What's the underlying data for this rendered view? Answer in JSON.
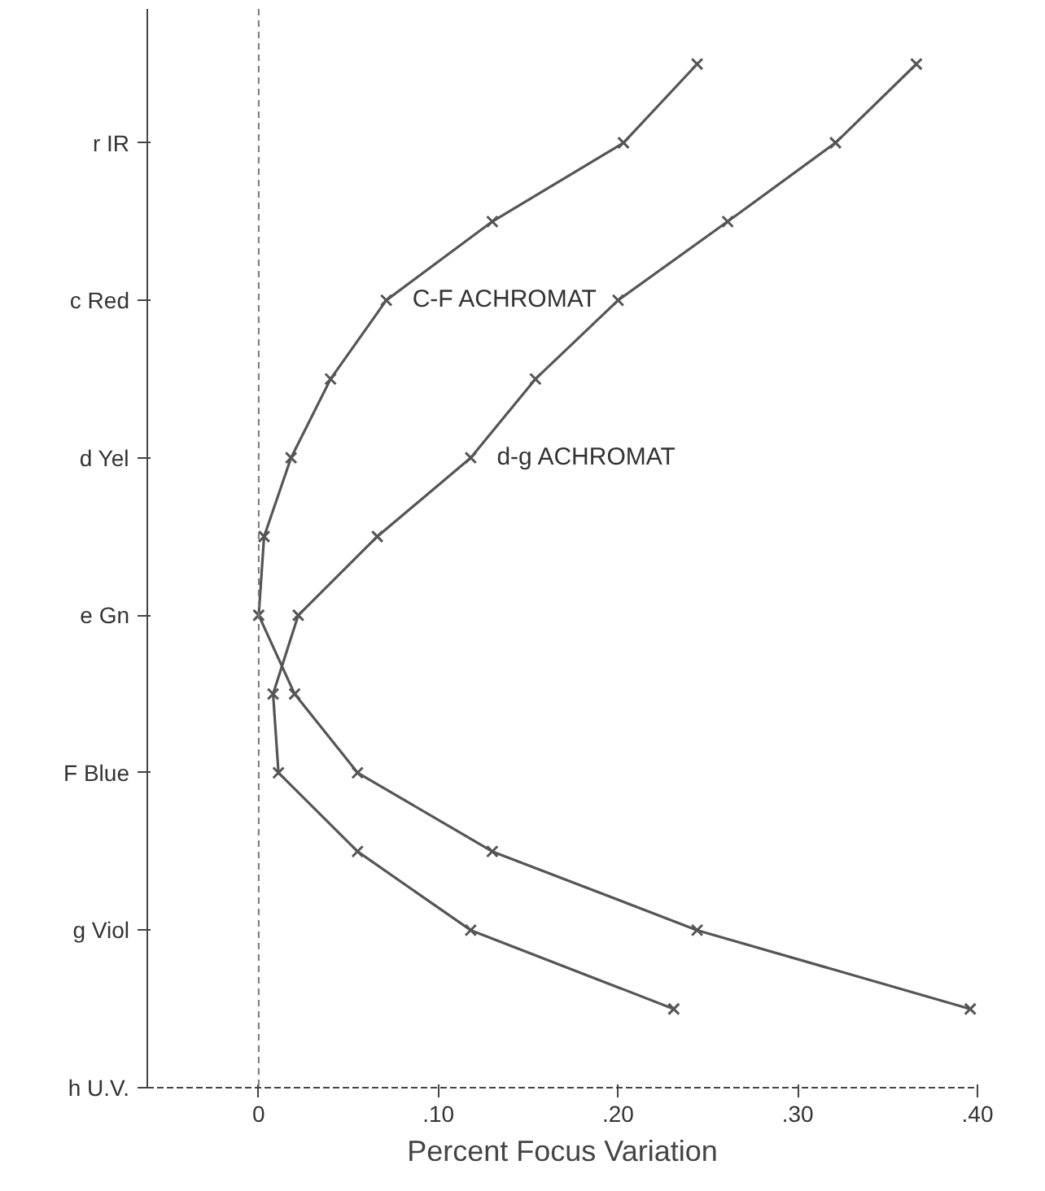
{
  "chart_data": {
    "type": "line",
    "orientation": "horizontal",
    "xlabel": "Percent Focus Variation",
    "xlim": [
      -0.062,
      0.4
    ],
    "xticks": [
      {
        "value": 0,
        "label": "0"
      },
      {
        "value": 0.1,
        "label": ".10"
      },
      {
        "value": 0.2,
        "label": ".20"
      },
      {
        "value": 0.3,
        "label": ".30"
      },
      {
        "value": 0.4,
        "label": ".40"
      }
    ],
    "categories": [
      null,
      "r IR",
      null,
      "c Red",
      null,
      "d Yel",
      null,
      "e Gn",
      null,
      "F Blue",
      null,
      "g Viol",
      null,
      "h U.V."
    ],
    "grid": false,
    "marker": "cross",
    "line_style": "solid",
    "ref_lines": [
      {
        "axis": "x",
        "value": 0,
        "line_style": "dashed"
      }
    ],
    "series": [
      {
        "name": "C-F ACHROMAT",
        "color": "#555555",
        "values": [
          0.244,
          0.203,
          0.13,
          0.071,
          0.04,
          0.018,
          0.003,
          0.0,
          0.02,
          0.055,
          0.13,
          0.244,
          0.396,
          null
        ]
      },
      {
        "name": "d-g ACHROMAT",
        "color": "#555555",
        "values": [
          0.366,
          0.321,
          0.261,
          0.2,
          0.154,
          0.118,
          0.066,
          0.022,
          0.008,
          0.011,
          0.055,
          0.118,
          0.231,
          null
        ]
      }
    ]
  }
}
